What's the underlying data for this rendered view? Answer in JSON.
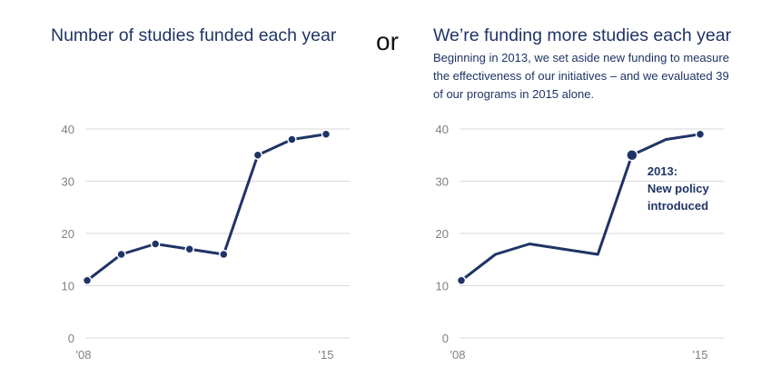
{
  "header": {
    "left_title": "Number of studies funded each year",
    "separator": "or",
    "right_title": "We’re funding more studies each year",
    "right_subtitle": "Beginning in 2013, we set aside new funding to measure the effectiveness of our initiatives – and we evaluated 39 of our programs in 2015 alone."
  },
  "colors": {
    "series": "#1f3466",
    "grid": "#d9d9d9",
    "tick": "#7f7f7f"
  },
  "chart_data": [
    {
      "type": "line",
      "title": "Number of studies funded each year",
      "x": [
        2008,
        2009,
        2010,
        2011,
        2012,
        2013,
        2014,
        2015
      ],
      "x_tick_labels": [
        "'08",
        "'15"
      ],
      "y_ticks": [
        0,
        10,
        20,
        30,
        40
      ],
      "ylim": [
        0,
        40
      ],
      "grid": true,
      "series": [
        {
          "values": [
            11,
            16,
            18,
            17,
            16,
            35,
            38,
            39
          ]
        }
      ],
      "markers": "all"
    },
    {
      "type": "line",
      "title": "We’re funding more studies each year",
      "x": [
        2008,
        2009,
        2010,
        2011,
        2012,
        2013,
        2014,
        2015
      ],
      "x_tick_labels": [
        "'08",
        "'15"
      ],
      "y_ticks": [
        0,
        10,
        20,
        30,
        40
      ],
      "ylim": [
        0,
        40
      ],
      "grid": true,
      "series": [
        {
          "values": [
            11,
            16,
            18,
            17,
            16,
            35,
            38,
            39
          ]
        }
      ],
      "markers": "endpoints-and-highlight",
      "highlight_x": 2013,
      "annotation": {
        "x": 2013,
        "lines": [
          "2013:",
          "New policy",
          "introduced"
        ]
      }
    }
  ]
}
